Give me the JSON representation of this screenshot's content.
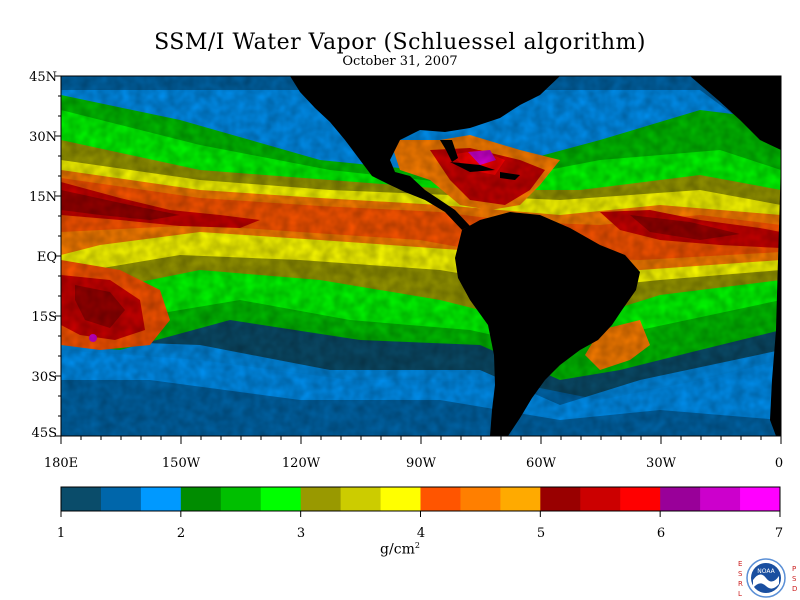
{
  "title": "SSM/I Water Vapor (Schluessel algorithm)",
  "date": "October 31, 2007",
  "lat_labels": [
    "45N",
    "30N",
    "15N",
    "EQ",
    "15S",
    "30S",
    "45S"
  ],
  "lon_labels": [
    "180E",
    "150W",
    "120W",
    "90W",
    "60W",
    "30W",
    "0"
  ],
  "colorbar": {
    "ticks": [
      "1",
      "2",
      "3",
      "4",
      "5",
      "6",
      "7"
    ],
    "units_base": "g/cm",
    "units_exp": "2",
    "colors": [
      "#0a4c6a",
      "#0066aa",
      "#0099ff",
      "#008c00",
      "#00bf00",
      "#00ff00",
      "#999900",
      "#cccc00",
      "#ffff00",
      "#ff5500",
      "#ff7f00",
      "#ffaa00",
      "#990000",
      "#cc0000",
      "#ff0000",
      "#990099",
      "#cc00cc",
      "#ff00ff"
    ]
  },
  "logo": {
    "left_letters": [
      "E",
      "S",
      "R",
      "L"
    ],
    "right_letters": [
      "P",
      "S",
      "D"
    ],
    "seal_text": "NOAA"
  }
}
